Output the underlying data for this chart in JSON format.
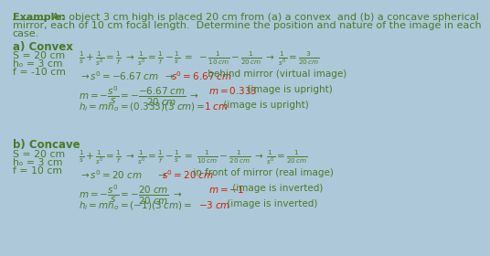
{
  "background_color": "#adc8d8",
  "green": "#4a7a2a",
  "red": "#cc2200",
  "black": "#1a1a1a",
  "title_word": "Example:",
  "title_rest": "  An object 3 cm high is placed 20 cm from (a) a convex  and (b) a concave spherical",
  "line2": "mirror, each of 10 cm focal length.  Determine the position and nature of the image in each",
  "line3": "case.",
  "sec_a": "a) Convex",
  "sec_b": "b) Concave",
  "given_a": [
    "S = 20 cm",
    "hₒ = 3 cm",
    "f = -10 cm"
  ],
  "given_b": [
    "S = 20 cm",
    "hₒ = 3 cm",
    "f = 10 cm"
  ]
}
